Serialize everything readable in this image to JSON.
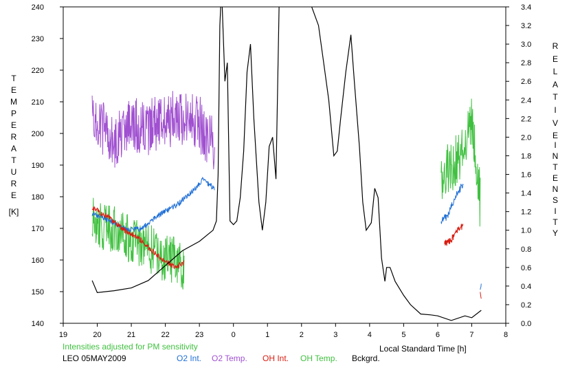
{
  "labels": {
    "left_axis_letters": [
      "T",
      "E",
      "M",
      "P",
      "E",
      "R",
      "A",
      "T",
      "U",
      "R",
      "E"
    ],
    "left_axis_unit": "[K]",
    "right_axis_letters_1": [
      "R",
      "E",
      "L",
      "A",
      "T",
      "I",
      "V",
      "E"
    ],
    "right_axis_letters_2": [
      "I",
      "N",
      "T",
      "E",
      "N",
      "S",
      "I",
      "T",
      "Y"
    ],
    "xlabel": "Local Standard Time [h]",
    "note": "Intensities adjusted for PM sensitivity",
    "station": "LEO 05MAY2009"
  },
  "legend": [
    {
      "name": "O2 Int.",
      "color": "#1f6fd6"
    },
    {
      "name": "O2 Temp.",
      "color": "#a050d0"
    },
    {
      "name": "OH Int.",
      "color": "#d81c10"
    },
    {
      "name": "OH Temp.",
      "color": "#40c040"
    },
    {
      "name": "Bckgrd.",
      "color": "#000000"
    }
  ],
  "chart_data": {
    "type": "line",
    "xlim": [
      19,
      32
    ],
    "x_ticks": [
      19,
      20,
      21,
      22,
      23,
      24,
      25,
      26,
      27,
      28,
      29,
      30,
      31,
      32
    ],
    "x_tick_labels": [
      "19",
      "20",
      "21",
      "22",
      "23",
      "0",
      "1",
      "2",
      "3",
      "4",
      "5",
      "6",
      "7",
      "8"
    ],
    "ylim_left": [
      140,
      240
    ],
    "y_ticks_left": [
      140,
      150,
      160,
      170,
      180,
      190,
      200,
      210,
      220,
      230,
      240
    ],
    "ylim_right": [
      0.0,
      3.4
    ],
    "y_ticks_right": [
      "0.0",
      "0.2",
      "0.4",
      "0.6",
      "0.8",
      "1.0",
      "1.2",
      "1.4",
      "1.6",
      "1.8",
      "2.0",
      "2.2",
      "2.4",
      "2.6",
      "2.8",
      "3.0",
      "3.2",
      "3.4"
    ],
    "series": [
      {
        "name": "O2 Temp.",
        "axis": "left",
        "color": "#a050d0",
        "segments": [
          {
            "x_start": 19.85,
            "x_end": 23.45,
            "mean": [
              [
                19.85,
                205
              ],
              [
                20.5,
                198
              ],
              [
                21.0,
                203
              ],
              [
                21.5,
                202
              ],
              [
                22.0,
                204
              ],
              [
                22.5,
                205
              ],
              [
                23.0,
                203
              ],
              [
                23.45,
                196
              ]
            ],
            "noise": 9
          }
        ]
      },
      {
        "name": "OH Temp.",
        "axis": "left",
        "color": "#40c040",
        "segments": [
          {
            "x_start": 19.85,
            "x_end": 22.55,
            "mean": [
              [
                19.85,
                172
              ],
              [
                20.3,
                170
              ],
              [
                20.8,
                168
              ],
              [
                21.2,
                165
              ],
              [
                21.6,
                163
              ],
              [
                22.0,
                161
              ],
              [
                22.55,
                158
              ]
            ],
            "noise": 8
          },
          {
            "x_start": 30.1,
            "x_end": 31.25,
            "mean": [
              [
                30.1,
                185
              ],
              [
                30.4,
                190
              ],
              [
                30.8,
                197
              ],
              [
                31.0,
                204
              ],
              [
                31.1,
                195
              ],
              [
                31.25,
                178
              ]
            ],
            "noise": 9
          }
        ]
      },
      {
        "name": "O2 Int.",
        "axis": "right",
        "color": "#1f6fd6",
        "segments": [
          {
            "x_start": 19.85,
            "x_end": 23.45,
            "mean": [
              [
                19.85,
                1.18
              ],
              [
                20.5,
                1.08
              ],
              [
                20.9,
                1.0
              ],
              [
                21.3,
                1.02
              ],
              [
                21.8,
                1.16
              ],
              [
                22.3,
                1.26
              ],
              [
                22.8,
                1.42
              ],
              [
                23.1,
                1.54
              ],
              [
                23.45,
                1.45
              ]
            ],
            "noise": 0.03
          },
          {
            "x_start": 30.1,
            "x_end": 30.75,
            "mean": [
              [
                30.1,
                1.1
              ],
              [
                30.3,
                1.15
              ],
              [
                30.5,
                1.35
              ],
              [
                30.75,
                1.5
              ]
            ],
            "noise": 0.04
          },
          {
            "x_start": 31.25,
            "x_end": 31.28,
            "mean": [
              [
                31.25,
                0.35
              ],
              [
                31.28,
                0.42
              ]
            ],
            "noise": 0.02
          }
        ]
      },
      {
        "name": "OH Int.",
        "axis": "right",
        "color": "#d81c10",
        "segments": [
          {
            "x_start": 19.85,
            "x_end": 22.55,
            "mean": [
              [
                19.85,
                1.24
              ],
              [
                20.3,
                1.15
              ],
              [
                20.8,
                1.0
              ],
              [
                21.2,
                0.92
              ],
              [
                21.6,
                0.78
              ],
              [
                22.0,
                0.66
              ],
              [
                22.3,
                0.6
              ],
              [
                22.55,
                0.65
              ]
            ],
            "noise": 0.03
          },
          {
            "x_start": 30.2,
            "x_end": 30.75,
            "mean": [
              [
                30.2,
                0.85
              ],
              [
                30.4,
                0.9
              ],
              [
                30.55,
                0.98
              ],
              [
                30.75,
                1.05
              ]
            ],
            "noise": 0.04
          },
          {
            "x_start": 31.25,
            "x_end": 31.28,
            "mean": [
              [
                31.25,
                0.32
              ],
              [
                31.28,
                0.28
              ]
            ],
            "noise": 0.02
          }
        ]
      },
      {
        "name": "Bckgrd.",
        "axis": "right",
        "color": "#000000",
        "points": [
          [
            19.85,
            0.46
          ],
          [
            20.0,
            0.33
          ],
          [
            20.5,
            0.35
          ],
          [
            21.0,
            0.38
          ],
          [
            21.5,
            0.46
          ],
          [
            22.0,
            0.62
          ],
          [
            22.5,
            0.78
          ],
          [
            23.0,
            0.88
          ],
          [
            23.4,
            1.0
          ],
          [
            23.5,
            1.1
          ],
          [
            23.55,
            1.6
          ],
          [
            23.6,
            3.2
          ],
          [
            23.65,
            3.6
          ],
          [
            23.75,
            2.6
          ],
          [
            23.82,
            2.8
          ],
          [
            23.9,
            1.1
          ],
          [
            24.0,
            1.06
          ],
          [
            24.1,
            1.1
          ],
          [
            24.2,
            1.35
          ],
          [
            24.3,
            1.85
          ],
          [
            24.4,
            2.7
          ],
          [
            24.5,
            3.0
          ],
          [
            24.6,
            2.2
          ],
          [
            24.75,
            1.3
          ],
          [
            24.85,
            1.0
          ],
          [
            24.95,
            1.3
          ],
          [
            25.05,
            1.9
          ],
          [
            25.15,
            2.0
          ],
          [
            25.25,
            1.55
          ],
          [
            25.35,
            3.6
          ],
          [
            26.1,
            3.6
          ],
          [
            26.5,
            3.2
          ],
          [
            26.65,
            2.8
          ],
          [
            26.8,
            2.4
          ],
          [
            26.95,
            1.8
          ],
          [
            27.05,
            1.85
          ],
          [
            27.15,
            2.2
          ],
          [
            27.3,
            2.7
          ],
          [
            27.45,
            3.1
          ],
          [
            27.55,
            2.6
          ],
          [
            27.7,
            1.9
          ],
          [
            27.8,
            1.3
          ],
          [
            27.9,
            1.0
          ],
          [
            28.05,
            1.08
          ],
          [
            28.15,
            1.45
          ],
          [
            28.25,
            1.35
          ],
          [
            28.35,
            0.7
          ],
          [
            28.45,
            0.45
          ],
          [
            28.5,
            0.6
          ],
          [
            28.6,
            0.6
          ],
          [
            28.75,
            0.45
          ],
          [
            29.0,
            0.3
          ],
          [
            29.2,
            0.2
          ],
          [
            29.5,
            0.1
          ],
          [
            29.8,
            0.09
          ],
          [
            30.0,
            0.08
          ],
          [
            30.4,
            0.03
          ],
          [
            30.8,
            0.08
          ],
          [
            31.0,
            0.06
          ],
          [
            31.28,
            0.14
          ]
        ]
      }
    ]
  }
}
